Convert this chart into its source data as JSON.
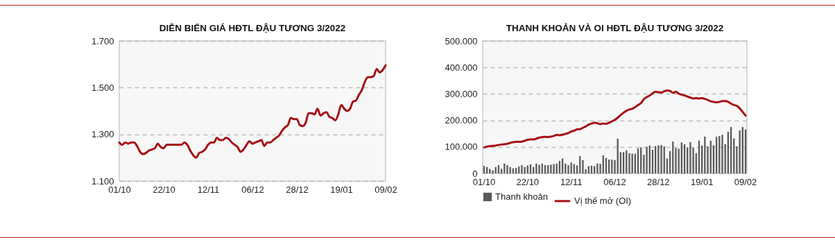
{
  "chart_data": [
    {
      "type": "line",
      "title": "DIỄN BIẾN GIÁ HĐTL ĐẬU TƯƠNG 3/2022",
      "categories": [
        "01/10",
        null,
        null,
        null,
        null,
        null,
        null,
        null,
        null,
        null,
        null,
        null,
        null,
        null,
        null,
        "22/10",
        null,
        null,
        null,
        null,
        null,
        null,
        null,
        null,
        null,
        null,
        null,
        null,
        null,
        null,
        "12/11",
        null,
        null,
        null,
        null,
        null,
        null,
        null,
        null,
        null,
        null,
        null,
        null,
        null,
        null,
        "06/12",
        null,
        null,
        null,
        null,
        null,
        null,
        null,
        null,
        null,
        null,
        null,
        null,
        null,
        null,
        "28/12",
        null,
        null,
        null,
        null,
        null,
        null,
        null,
        null,
        null,
        null,
        null,
        null,
        null,
        null,
        "19/01",
        null,
        null,
        null,
        null,
        null,
        null,
        null,
        null,
        null,
        null,
        null,
        null,
        null,
        null,
        "09/02"
      ],
      "values": [
        1265,
        1255,
        1265,
        1260,
        1265,
        1265,
        1250,
        1225,
        1215,
        1220,
        1230,
        1235,
        1240,
        1260,
        1245,
        1240,
        1255,
        1255,
        1255,
        1255,
        1255,
        1255,
        1265,
        1255,
        1230,
        1210,
        1200,
        1220,
        1225,
        1235,
        1255,
        1265,
        1265,
        1285,
        1275,
        1275,
        1285,
        1280,
        1265,
        1255,
        1245,
        1225,
        1235,
        1255,
        1270,
        1260,
        1265,
        1270,
        1275,
        1250,
        1265,
        1265,
        1275,
        1285,
        1295,
        1315,
        1330,
        1340,
        1370,
        1365,
        1365,
        1340,
        1335,
        1350,
        1390,
        1390,
        1385,
        1410,
        1380,
        1390,
        1395,
        1375,
        1370,
        1360,
        1385,
        1425,
        1410,
        1400,
        1410,
        1440,
        1445,
        1470,
        1490,
        1525,
        1545,
        1545,
        1550,
        1580,
        1565,
        1575,
        1595
      ],
      "color": "#a50f15",
      "ylim": [
        1100,
        1700
      ],
      "yticks": [
        {
          "value": 1100,
          "label": "1.100"
        },
        {
          "value": 1300,
          "label": "1.300"
        },
        {
          "value": 1500,
          "label": "1.500"
        },
        {
          "value": 1700,
          "label": "1.700"
        }
      ],
      "grid": "y"
    },
    {
      "type": "bar",
      "title": "THANH KHOẢN VÀ OI HĐTL ĐẬU TƯƠNG 3/2022",
      "categories": [
        "01/10",
        null,
        null,
        null,
        null,
        null,
        null,
        null,
        null,
        null,
        null,
        null,
        null,
        null,
        null,
        "22/10",
        null,
        null,
        null,
        null,
        null,
        null,
        null,
        null,
        null,
        null,
        null,
        null,
        null,
        null,
        "12/11",
        null,
        null,
        null,
        null,
        null,
        null,
        null,
        null,
        null,
        null,
        null,
        null,
        null,
        null,
        "06/12",
        null,
        null,
        null,
        null,
        null,
        null,
        null,
        null,
        null,
        null,
        null,
        null,
        null,
        null,
        "28/12",
        null,
        null,
        null,
        null,
        null,
        null,
        null,
        null,
        null,
        null,
        null,
        null,
        null,
        null,
        "19/01",
        null,
        null,
        null,
        null,
        null,
        null,
        null,
        null,
        null,
        null,
        null,
        null,
        null,
        null,
        "09/02"
      ],
      "series": [
        {
          "name": "Thanh khoản",
          "type": "bar",
          "color": "#595959",
          "values": [
            28000,
            24000,
            17000,
            11000,
            24000,
            31000,
            17000,
            37000,
            31000,
            24000,
            19000,
            21000,
            26000,
            31000,
            24000,
            30000,
            34000,
            24000,
            37000,
            32000,
            37000,
            31000,
            31000,
            33000,
            35000,
            37000,
            47000,
            56000,
            37000,
            31000,
            41000,
            35000,
            30000,
            65000,
            50000,
            16000,
            27000,
            29000,
            27000,
            37000,
            36000,
            68000,
            58000,
            52000,
            52000,
            50000,
            131000,
            80000,
            80000,
            87000,
            76000,
            74000,
            74000,
            94000,
            98000,
            70000,
            100000,
            105000,
            89000,
            103000,
            106000,
            107000,
            102000,
            56000,
            84000,
            120000,
            95000,
            93000,
            117000,
            110000,
            98000,
            118000,
            97000,
            76000,
            124000,
            105000,
            139000,
            102000,
            123000,
            106000,
            138000,
            141000,
            146000,
            110000,
            157000,
            175000,
            132000,
            102000,
            162000,
            175000,
            165000
          ]
        },
        {
          "name": "Vị thế mở (OI)",
          "type": "line",
          "color": "#a50f15",
          "values": [
            98000,
            101000,
            103000,
            104000,
            105000,
            107000,
            109000,
            110000,
            112000,
            115000,
            118000,
            119000,
            119000,
            120000,
            123000,
            127000,
            128000,
            128000,
            131000,
            135000,
            137000,
            138000,
            137000,
            139000,
            141000,
            145000,
            144000,
            146000,
            149000,
            152000,
            158000,
            161000,
            166000,
            167000,
            172000,
            177000,
            184000,
            188000,
            191000,
            189000,
            186000,
            188000,
            187000,
            191000,
            196000,
            202000,
            210000,
            220000,
            229000,
            236000,
            241000,
            244000,
            250000,
            258000,
            265000,
            280000,
            288000,
            294000,
            302000,
            308000,
            306000,
            305000,
            310000,
            313000,
            311000,
            304000,
            308000,
            301000,
            297000,
            294000,
            290000,
            286000,
            283000,
            284000,
            283000,
            284000,
            281000,
            277000,
            272000,
            270000,
            268000,
            270000,
            273000,
            273000,
            270000,
            263000,
            258000,
            255000,
            245000,
            232000,
            218000
          ]
        }
      ],
      "ylim": [
        0,
        500000
      ],
      "yticks": [
        0,
        {
          "value": 100000,
          "label": "100.000"
        },
        {
          "value": 200000,
          "label": "200.000"
        },
        {
          "value": 300000,
          "label": "300.000"
        },
        {
          "value": 400000,
          "label": "400.000"
        },
        {
          "value": 500000,
          "label": "500.000"
        }
      ],
      "grid": "y",
      "legend": "bottom"
    }
  ]
}
